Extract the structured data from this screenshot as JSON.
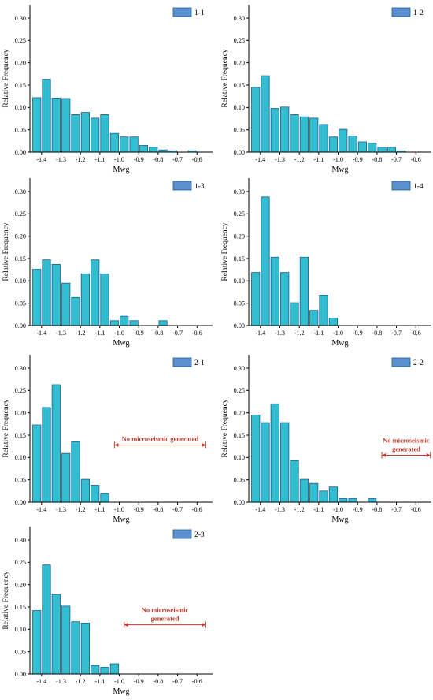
{
  "colors": {
    "bar_fill": "#33bdd1",
    "bar_stroke": "#1f5f8b",
    "legend_fill": "#5b8fcf",
    "annotation": "#c0392b"
  },
  "chart_data": [
    {
      "panel": "1-1",
      "type": "bar",
      "xlabel": "Mwg",
      "ylabel": "Relative Frequency",
      "ylim": [
        0,
        0.33
      ],
      "yticks": [
        "0.00",
        "0.05",
        "0.10",
        "0.15",
        "0.20",
        "0.25",
        "0.30"
      ],
      "xlim": [
        -1.46,
        -0.52
      ],
      "xticks": [
        "-1.4",
        "-1.3",
        "-1.2",
        "-1.1",
        "-1.0",
        "-0.9",
        "-0.8",
        "-0.7",
        "-0.6"
      ],
      "x": [
        -1.425,
        -1.375,
        -1.325,
        -1.275,
        -1.225,
        -1.175,
        -1.125,
        -1.075,
        -1.025,
        -0.975,
        -0.925,
        -0.875,
        -0.825,
        -0.775,
        -0.725,
        -0.675,
        -0.625,
        -0.575
      ],
      "values": [
        0.122,
        0.163,
        0.121,
        0.12,
        0.084,
        0.089,
        0.076,
        0.084,
        0.042,
        0.034,
        0.034,
        0.015,
        0.011,
        0.005,
        0.003,
        0,
        0.003,
        0
      ],
      "legend": "1-1",
      "legend_position": "top-right"
    },
    {
      "panel": "1-2",
      "type": "bar",
      "xlabel": "Mwg",
      "ylabel": "Relative Frequency",
      "ylim": [
        0,
        0.33
      ],
      "yticks": [
        "0.00",
        "0.05",
        "0.10",
        "0.15",
        "0.20",
        "0.25",
        "0.30"
      ],
      "xlim": [
        -1.46,
        -0.52
      ],
      "xticks": [
        "-1.4",
        "-1.3",
        "-1.2",
        "-1.1",
        "-1.0",
        "-0.9",
        "-0.8",
        "-0.7",
        "-0.6"
      ],
      "x": [
        -1.425,
        -1.375,
        -1.325,
        -1.275,
        -1.225,
        -1.175,
        -1.125,
        -1.075,
        -1.025,
        -0.975,
        -0.925,
        -0.875,
        -0.825,
        -0.775,
        -0.725,
        -0.675,
        -0.625,
        -0.575
      ],
      "values": [
        0.145,
        0.171,
        0.098,
        0.101,
        0.084,
        0.079,
        0.076,
        0.062,
        0.034,
        0.051,
        0.036,
        0.023,
        0.02,
        0.011,
        0.011,
        0.003,
        0,
        0
      ],
      "legend": "1-2",
      "legend_position": "top-right"
    },
    {
      "panel": "1-3",
      "type": "bar",
      "xlabel": "Mwg",
      "ylabel": "Relative Frequency",
      "ylim": [
        0,
        0.33
      ],
      "yticks": [
        "0.00",
        "0.05",
        "0.10",
        "0.15",
        "0.20",
        "0.25",
        "0.30"
      ],
      "xlim": [
        -1.46,
        -0.52
      ],
      "xticks": [
        "-1.4",
        "-1.3",
        "-1.2",
        "-1.1",
        "-1.0",
        "-0.9",
        "-0.8",
        "-0.7",
        "-0.6"
      ],
      "x": [
        -1.425,
        -1.375,
        -1.325,
        -1.275,
        -1.225,
        -1.175,
        -1.125,
        -1.075,
        -1.025,
        -0.975,
        -0.925,
        -0.875,
        -0.825,
        -0.775,
        -0.725,
        -0.675,
        -0.625,
        -0.575
      ],
      "values": [
        0.126,
        0.147,
        0.137,
        0.095,
        0.063,
        0.116,
        0.147,
        0.116,
        0.011,
        0.021,
        0.011,
        0,
        0,
        0.011,
        0,
        0,
        0,
        0
      ],
      "legend": "1-3",
      "legend_position": "top-right"
    },
    {
      "panel": "1-4",
      "type": "bar",
      "xlabel": "Mwg",
      "ylabel": "Relative Frequency",
      "ylim": [
        0,
        0.33
      ],
      "yticks": [
        "0.00",
        "0.05",
        "0.10",
        "0.15",
        "0.20",
        "0.25",
        "0.30"
      ],
      "xlim": [
        -1.46,
        -0.52
      ],
      "xticks": [
        "-1.4",
        "-1.3",
        "-1.2",
        "-1.1",
        "-1.0",
        "-0.9",
        "-0.8",
        "-0.7",
        "-0.6"
      ],
      "x": [
        -1.425,
        -1.375,
        -1.325,
        -1.275,
        -1.225,
        -1.175,
        -1.125,
        -1.075,
        -1.025,
        -0.975,
        -0.925,
        -0.875,
        -0.825,
        -0.775,
        -0.725,
        -0.675,
        -0.625,
        -0.575
      ],
      "values": [
        0.119,
        0.288,
        0.153,
        0.119,
        0.051,
        0.153,
        0.034,
        0.068,
        0.017,
        0,
        0,
        0,
        0,
        0,
        0,
        0,
        0,
        0
      ],
      "legend": "1-4",
      "legend_position": "top-right"
    },
    {
      "panel": "2-1",
      "type": "bar",
      "xlabel": "Mwg",
      "ylabel": "Relative Frequency",
      "ylim": [
        0,
        0.33
      ],
      "yticks": [
        "0.00",
        "0.05",
        "0.10",
        "0.15",
        "0.20",
        "0.25",
        "0.30"
      ],
      "xlim": [
        -1.46,
        -0.52
      ],
      "xticks": [
        "-1.4",
        "-1.3",
        "-1.2",
        "-1.1",
        "-1.0",
        "-0.9",
        "-0.8",
        "-0.7",
        "-0.6"
      ],
      "x": [
        -1.425,
        -1.375,
        -1.325,
        -1.275,
        -1.225,
        -1.175,
        -1.125,
        -1.075
      ],
      "values": [
        0.173,
        0.212,
        0.263,
        0.109,
        0.135,
        0.051,
        0.038,
        0.019
      ],
      "legend": "2-1",
      "legend_position": "top-right",
      "annotation": {
        "text": [
          "No microseismic generated"
        ],
        "x_from": -1.025,
        "x_to": -0.555,
        "y": 0.128
      }
    },
    {
      "panel": "2-2",
      "type": "bar",
      "xlabel": "Mwg",
      "ylabel": "Relative Frequency",
      "ylim": [
        0,
        0.33
      ],
      "yticks": [
        "0.00",
        "0.05",
        "0.10",
        "0.15",
        "0.20",
        "0.25",
        "0.30"
      ],
      "xlim": [
        -1.46,
        -0.52
      ],
      "xticks": [
        "-1.4",
        "-1.3",
        "-1.2",
        "-1.1",
        "-1.0",
        "-0.9",
        "-0.8",
        "-0.7",
        "-0.6"
      ],
      "x": [
        -1.425,
        -1.375,
        -1.325,
        -1.275,
        -1.225,
        -1.175,
        -1.125,
        -1.075,
        -1.025,
        -0.975,
        -0.925,
        -0.875,
        -0.825
      ],
      "values": [
        0.195,
        0.178,
        0.22,
        0.178,
        0.093,
        0.051,
        0.042,
        0.025,
        0.034,
        0.008,
        0.008,
        0,
        0.008
      ],
      "legend": "2-2",
      "legend_position": "top-right",
      "annotation": {
        "text": [
          "No microseismic",
          "generated"
        ],
        "x_from": -0.775,
        "x_to": -0.525,
        "y": 0.105
      }
    },
    {
      "panel": "2-3",
      "type": "bar",
      "xlabel": "Mwg",
      "ylabel": "Relative Frequency",
      "ylim": [
        0,
        0.33
      ],
      "yticks": [
        "0.00",
        "0.05",
        "0.10",
        "0.15",
        "0.20",
        "0.25",
        "0.30"
      ],
      "xlim": [
        -1.46,
        -0.52
      ],
      "xticks": [
        "-1.4",
        "-1.3",
        "-1.2",
        "-1.1",
        "-1.0",
        "-0.9",
        "-0.8",
        "-0.7",
        "-0.6"
      ],
      "x": [
        -1.425,
        -1.375,
        -1.325,
        -1.275,
        -1.225,
        -1.175,
        -1.125,
        -1.075,
        -1.025
      ],
      "values": [
        0.142,
        0.244,
        0.178,
        0.152,
        0.117,
        0.114,
        0.019,
        0.015,
        0.023
      ],
      "legend": "2-3",
      "legend_position": "top-right",
      "annotation": {
        "text": [
          "No microseismic",
          "generated"
        ],
        "x_from": -0.975,
        "x_to": -0.555,
        "y": 0.11
      }
    }
  ]
}
